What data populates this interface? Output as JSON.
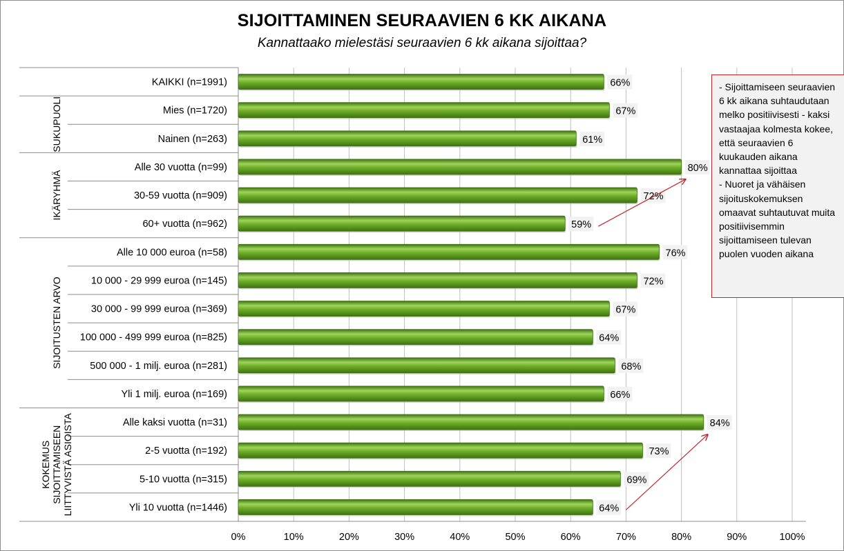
{
  "title": "SIJOITTAMINEN SEURAAVIEN 6 KK AIKANA",
  "subtitle": "Kannattaako mielestäsi seuraavien 6 kk aikana sijoittaa?",
  "note": "- Sijoittamiseen seuraavien 6 kk aikana suhtaudutaan melko positiivisesti - kaksi vastaajaa kolmesta kokee, että seuraavien 6 kuukauden aikana kannattaa sijoittaa\n- Nuoret ja vähäisen sijoituskokemuksen omaavat suhtautuvat muita positiivisemmin sijoittamiseen tulevan puolen vuoden aikana",
  "colors": {
    "bar": "#5a9a1e",
    "bar_dark": "#3f7410",
    "bar_light": "#9fd45a",
    "note_border": "#c0272d",
    "arrow": "#c0272d"
  },
  "chart_data": {
    "type": "bar",
    "orientation": "horizontal",
    "categories": [
      "KAIKKI (n=1991)",
      "Mies (n=1720)",
      "Nainen (n=263)",
      "Alle 30 vuotta (n=99)",
      "30-59 vuotta (n=909)",
      "60+ vuotta (n=962)",
      "Alle 10 000 euroa (n=58)",
      "10 000 - 29 999 euroa (n=145)",
      "30 000 - 99 999 euroa (n=369)",
      "100 000 - 499 999 euroa (n=825)",
      "500 000 - 1 milj. euroa (n=281)",
      "Yli 1 milj. euroa (n=169)",
      "Alle kaksi vuotta (n=31)",
      "2-5 vuotta (n=192)",
      "5-10 vuotta (n=315)",
      "Yli 10 vuotta (n=1446)"
    ],
    "values": [
      66,
      67,
      61,
      80,
      72,
      59,
      76,
      72,
      67,
      64,
      68,
      66,
      84,
      73,
      69,
      64
    ],
    "value_labels": [
      "66%",
      "67%",
      "61%",
      "80%",
      "72%",
      "59%",
      "76%",
      "72%",
      "67%",
      "64%",
      "68%",
      "66%",
      "84%",
      "73%",
      "69%",
      "64%"
    ],
    "groups": [
      {
        "lines": [
          ""
        ],
        "start": 0,
        "end": 0
      },
      {
        "lines": [
          "SUKUPUOLI"
        ],
        "start": 1,
        "end": 2
      },
      {
        "lines": [
          "IKÄRYHMÄ"
        ],
        "start": 3,
        "end": 5
      },
      {
        "lines": [
          "SIJOITUSTEN ARVO"
        ],
        "start": 6,
        "end": 11
      },
      {
        "lines": [
          "KOKEMUS",
          "SIJOITTAMISEEN",
          "LIITTYVISTÄ ASIOISTA"
        ],
        "start": 12,
        "end": 15
      }
    ],
    "xlim": [
      0,
      100
    ],
    "xticks": [
      "0%",
      "10%",
      "20%",
      "30%",
      "40%",
      "50%",
      "60%",
      "70%",
      "80%",
      "90%",
      "100%"
    ],
    "grid": true,
    "arrows": [
      {
        "from_category": 5,
        "to_category": 3
      },
      {
        "from_category": 15,
        "to_category": 12
      }
    ]
  }
}
